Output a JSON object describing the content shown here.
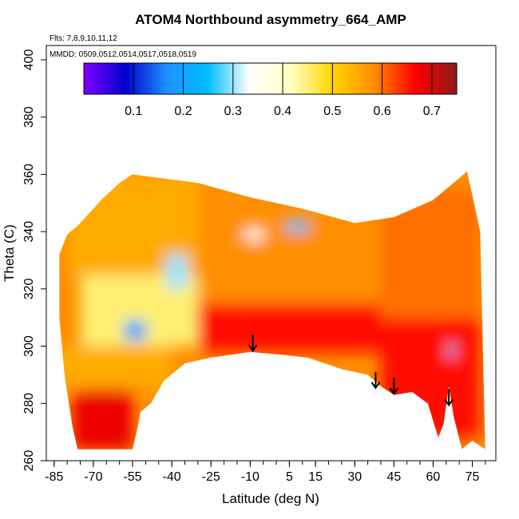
{
  "chart_data": {
    "type": "heatmap",
    "title": "ATOM4 Northbound asymmetry_664_AMP",
    "flights_note": "Flts: 7,8,9,10,11,12",
    "dates_note": "MMDD: 0509,0512,0514,0517,0518,0519",
    "xlabel": "Latitude (deg N)",
    "ylabel": "Theta (C)",
    "xlim": [
      -88,
      84
    ],
    "ylim": [
      260,
      405
    ],
    "x_ticks": [
      -85,
      -70,
      -55,
      -40,
      -25,
      -10,
      5,
      15,
      30,
      45,
      60,
      75
    ],
    "x_minor_step": 5,
    "y_ticks": [
      260,
      280,
      300,
      320,
      340,
      360,
      380,
      400
    ],
    "colorbar": {
      "range": [
        0,
        0.75
      ],
      "ticks": [
        0.1,
        0.2,
        0.3,
        0.4,
        0.5,
        0.6,
        0.7
      ],
      "colors": [
        "#7F00FF",
        "#0000CD",
        "#1E90FF",
        "#00BFFF",
        "#FFFFFF",
        "#FFFFC0",
        "#FFD700",
        "#FF8C00",
        "#FF0000",
        "#8B1A1A"
      ]
    },
    "top_boundary": [
      [
        -83,
        332
      ],
      [
        -80,
        339
      ],
      [
        -76,
        342
      ],
      [
        -72,
        346
      ],
      [
        -67,
        351
      ],
      [
        -60,
        357
      ],
      [
        -55,
        360
      ],
      [
        -47,
        359
      ],
      [
        -30,
        357
      ],
      [
        -10,
        352
      ],
      [
        10,
        348
      ],
      [
        30,
        343
      ],
      [
        45,
        345
      ],
      [
        60,
        351
      ],
      [
        73,
        361
      ],
      [
        78,
        340
      ],
      [
        79,
        300
      ],
      [
        80,
        262
      ]
    ],
    "bottom_boundary": [
      [
        80,
        264
      ],
      [
        75,
        267
      ],
      [
        71,
        264
      ],
      [
        68,
        275
      ],
      [
        66,
        286
      ],
      [
        64,
        273
      ],
      [
        62,
        268
      ],
      [
        58,
        280
      ],
      [
        52,
        284
      ],
      [
        45,
        283
      ],
      [
        40,
        286
      ],
      [
        35,
        290
      ],
      [
        25,
        292
      ],
      [
        12,
        296
      ],
      [
        2,
        297
      ],
      [
        -10,
        298
      ],
      [
        -25,
        296
      ],
      [
        -35,
        294
      ],
      [
        -43,
        288
      ],
      [
        -48,
        280
      ],
      [
        -52,
        277
      ],
      [
        -53,
        272
      ],
      [
        -55,
        264
      ],
      [
        -76,
        264
      ],
      [
        -78,
        272
      ],
      [
        -81,
        290
      ],
      [
        -83,
        310
      ]
    ],
    "field": [
      {
        "region": "southern-lowlat-base",
        "lat_range": [
          -78,
          -55
        ],
        "theta_range": [
          264,
          285
        ],
        "value": 0.68
      },
      {
        "region": "southern-lower",
        "lat_range": [
          -85,
          -40
        ],
        "theta_range": [
          285,
          300
        ],
        "value": 0.55
      },
      {
        "region": "southern-core",
        "lat_range": [
          -75,
          -30
        ],
        "theta_range": [
          300,
          325
        ],
        "value": 0.45
      },
      {
        "region": "tropical-lower",
        "lat_range": [
          -30,
          40
        ],
        "theta_range": [
          298,
          315
        ],
        "value": 0.66
      },
      {
        "region": "tropical-upper",
        "lat_range": [
          -30,
          40
        ],
        "theta_range": [
          315,
          345
        ],
        "value": 0.58
      },
      {
        "region": "northern-lower",
        "lat_range": [
          40,
          78
        ],
        "theta_range": [
          268,
          310
        ],
        "value": 0.66
      },
      {
        "region": "northern-upper",
        "lat_range": [
          40,
          78
        ],
        "theta_range": [
          310,
          355
        ],
        "value": 0.6
      },
      {
        "region": "southern-upper-cap",
        "lat_range": [
          -80,
          -30
        ],
        "theta_range": [
          325,
          360
        ],
        "value": 0.55
      },
      {
        "region": "low-patch-1",
        "lat_range": [
          -58,
          -50
        ],
        "theta_range": [
          302,
          309
        ],
        "value": 0.2
      },
      {
        "region": "low-patch-2",
        "lat_range": [
          -42,
          -34
        ],
        "theta_range": [
          320,
          332
        ],
        "value": 0.3
      },
      {
        "region": "low-patch-3",
        "lat_range": [
          4,
          12
        ],
        "theta_range": [
          340,
          344
        ],
        "value": 0.25
      },
      {
        "region": "low-patch-4",
        "lat_range": [
          -12,
          -5
        ],
        "theta_range": [
          337,
          341
        ],
        "value": 0.35
      },
      {
        "region": "low-patch-5",
        "lat_range": [
          66,
          68
        ],
        "theta_range": [
          296,
          301
        ],
        "value": 0.25
      }
    ],
    "arrows": [
      {
        "lat": -9,
        "theta": 304
      },
      {
        "lat": 38,
        "theta": 291
      },
      {
        "lat": 45,
        "theta": 289
      },
      {
        "lat": 66,
        "theta": 285
      }
    ]
  }
}
